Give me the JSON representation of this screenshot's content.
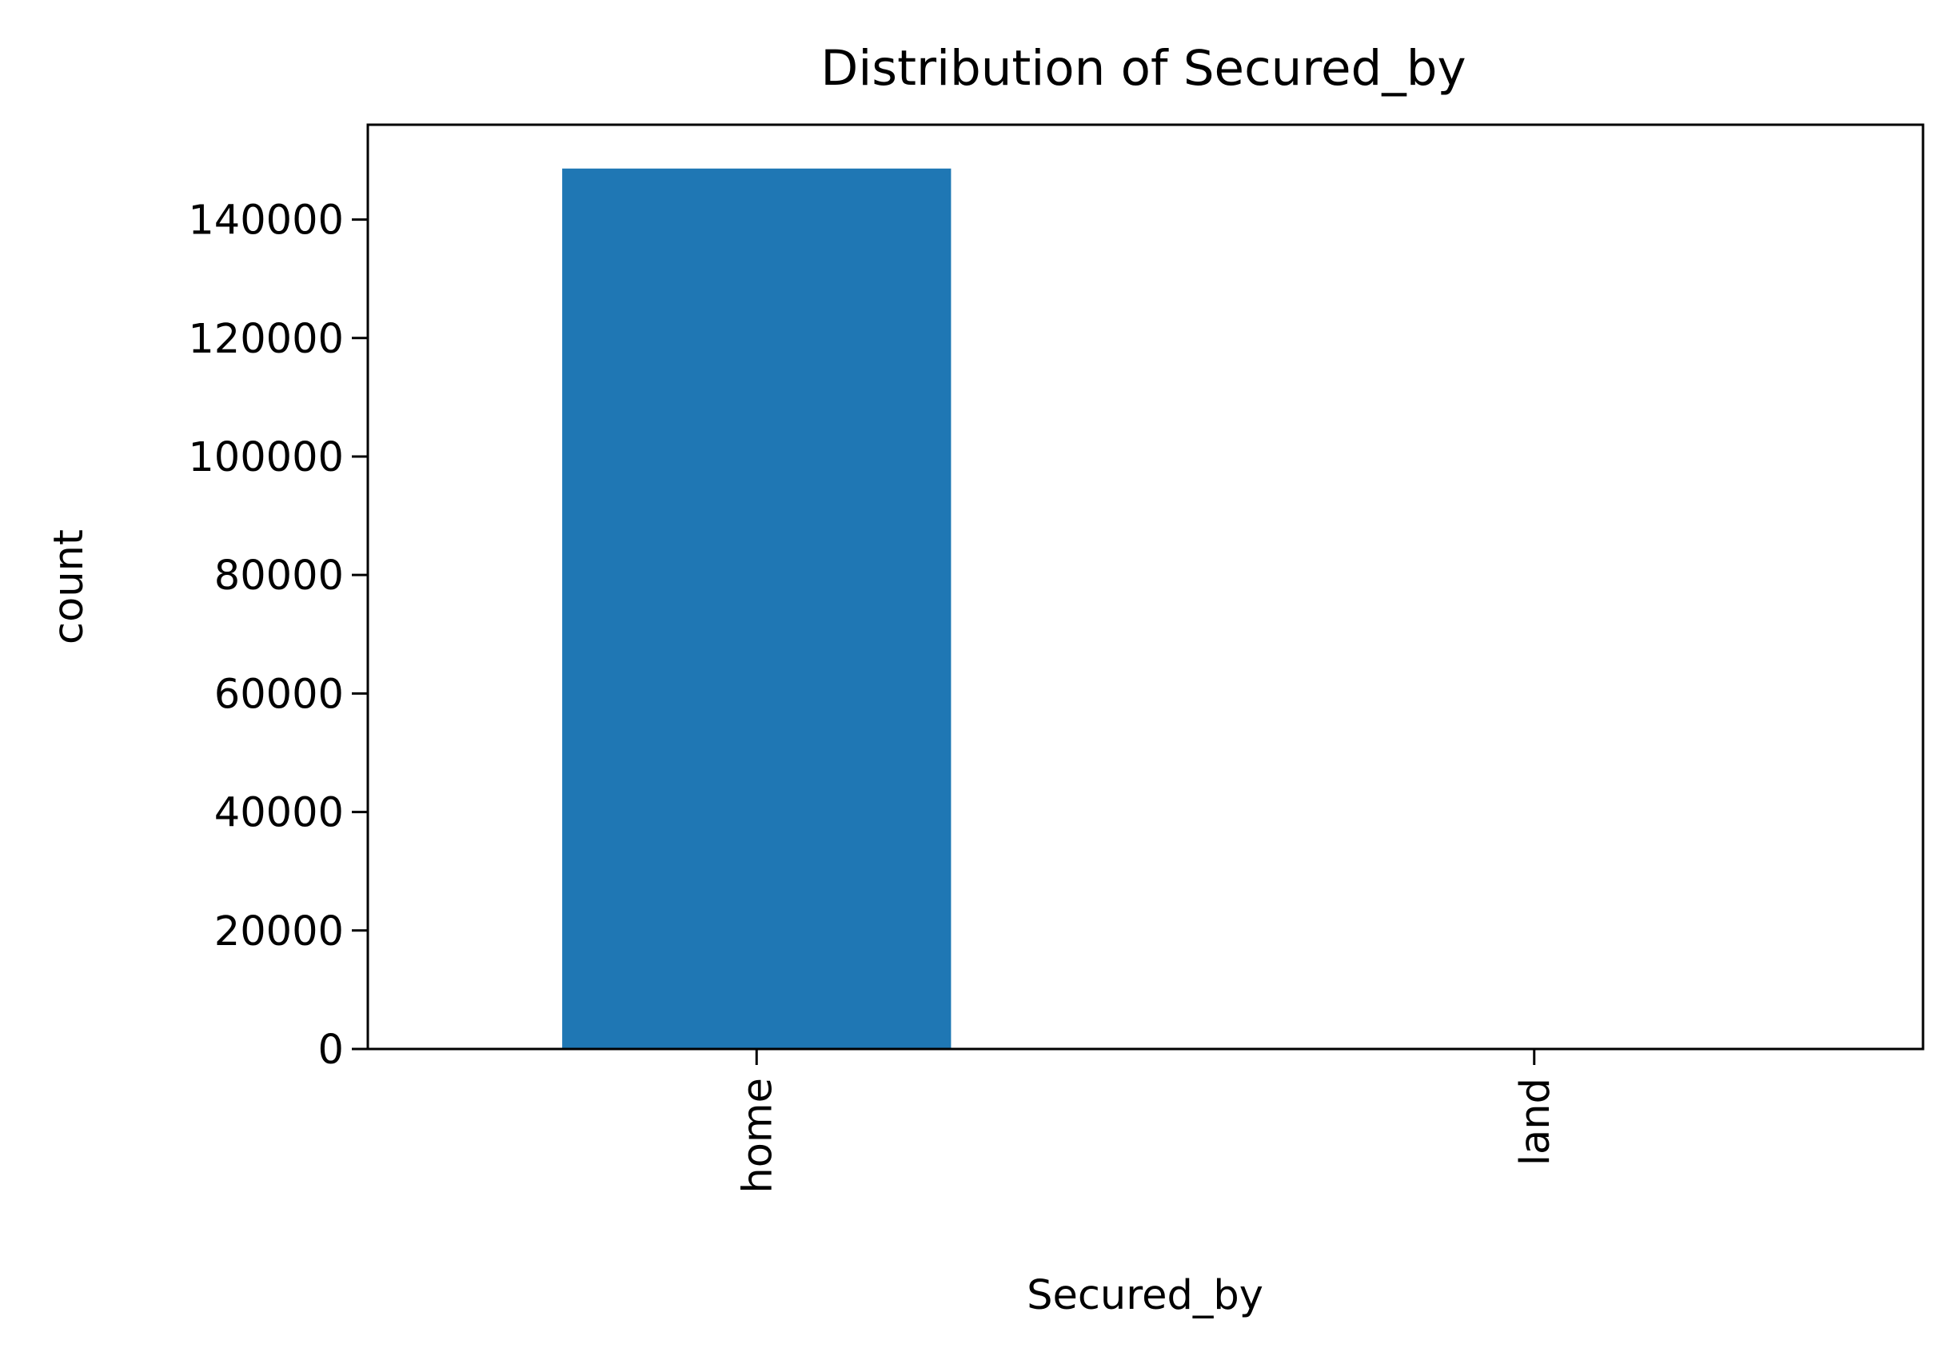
{
  "chart_data": {
    "type": "bar",
    "title": "Distribution of Secured_by",
    "xlabel": "Secured_by",
    "ylabel": "count",
    "categories": [
      "home",
      "land"
    ],
    "values": [
      148600,
      59
    ],
    "ylim": [
      0,
      156000
    ],
    "yticks": [
      0,
      20000,
      40000,
      60000,
      80000,
      100000,
      120000,
      140000
    ],
    "ytick_labels": [
      "0",
      "20000",
      "40000",
      "60000",
      "80000",
      "100000",
      "120000",
      "140000"
    ],
    "bar_color": "#1f77b4",
    "grid": false,
    "legend": "none"
  }
}
